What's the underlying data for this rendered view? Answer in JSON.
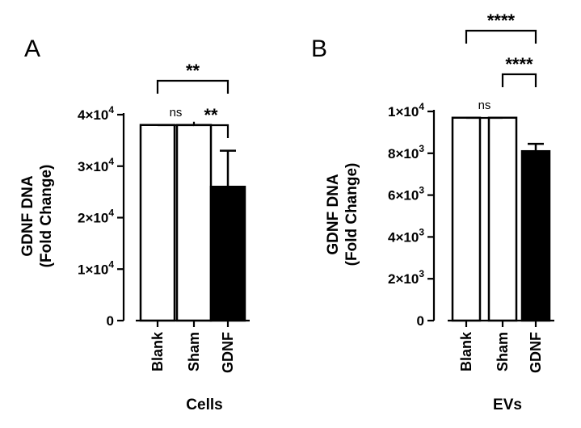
{
  "chart_data": [
    {
      "type": "bar",
      "panel_label": "A",
      "categories": [
        "Blank",
        "Sham",
        "GDNF"
      ],
      "values": [
        38000,
        38000,
        26000
      ],
      "errors": [
        null,
        null,
        7000
      ],
      "bar_fill": [
        "#ffffff",
        "#ffffff",
        "#000000"
      ],
      "xlabel": "Cells",
      "ylabel_lines": [
        "GDNF DNA",
        "(Fold Change)"
      ],
      "ylim": [
        0,
        40000
      ],
      "ticks": [
        {
          "value": 0,
          "base": "0",
          "exp": ""
        },
        {
          "value": 10000,
          "base": "1×10",
          "exp": "4"
        },
        {
          "value": 20000,
          "base": "2×10",
          "exp": "4"
        },
        {
          "value": 30000,
          "base": "3×10",
          "exp": "4"
        },
        {
          "value": 40000,
          "base": "4×10",
          "exp": "4"
        }
      ],
      "annotations": [
        {
          "from": 0,
          "to": 1,
          "label": "ns"
        },
        {
          "from": 1,
          "to": 2,
          "label": "**"
        },
        {
          "from": 0,
          "to": 2,
          "label": "**"
        }
      ]
    },
    {
      "type": "bar",
      "panel_label": "B",
      "categories": [
        "Blank",
        "Sham",
        "GDNF"
      ],
      "values": [
        9700,
        9700,
        8100
      ],
      "errors": [
        null,
        null,
        350
      ],
      "bar_fill": [
        "#ffffff",
        "#ffffff",
        "#000000"
      ],
      "xlabel": "EVs",
      "ylabel_lines": [
        "GDNF DNA",
        "(Fold Change)"
      ],
      "ylim": [
        0,
        10000
      ],
      "ticks": [
        {
          "value": 0,
          "base": "0",
          "exp": ""
        },
        {
          "value": 2000,
          "base": "2×10",
          "exp": "3"
        },
        {
          "value": 4000,
          "base": "4×10",
          "exp": "3"
        },
        {
          "value": 6000,
          "base": "6×10",
          "exp": "3"
        },
        {
          "value": 8000,
          "base": "8×10",
          "exp": "3"
        },
        {
          "value": 10000,
          "base": "1×10",
          "exp": "4"
        }
      ],
      "annotations": [
        {
          "from": 0,
          "to": 1,
          "label": "ns"
        },
        {
          "from": 1,
          "to": 2,
          "label": "****"
        },
        {
          "from": 0,
          "to": 2,
          "label": "****"
        }
      ]
    }
  ]
}
